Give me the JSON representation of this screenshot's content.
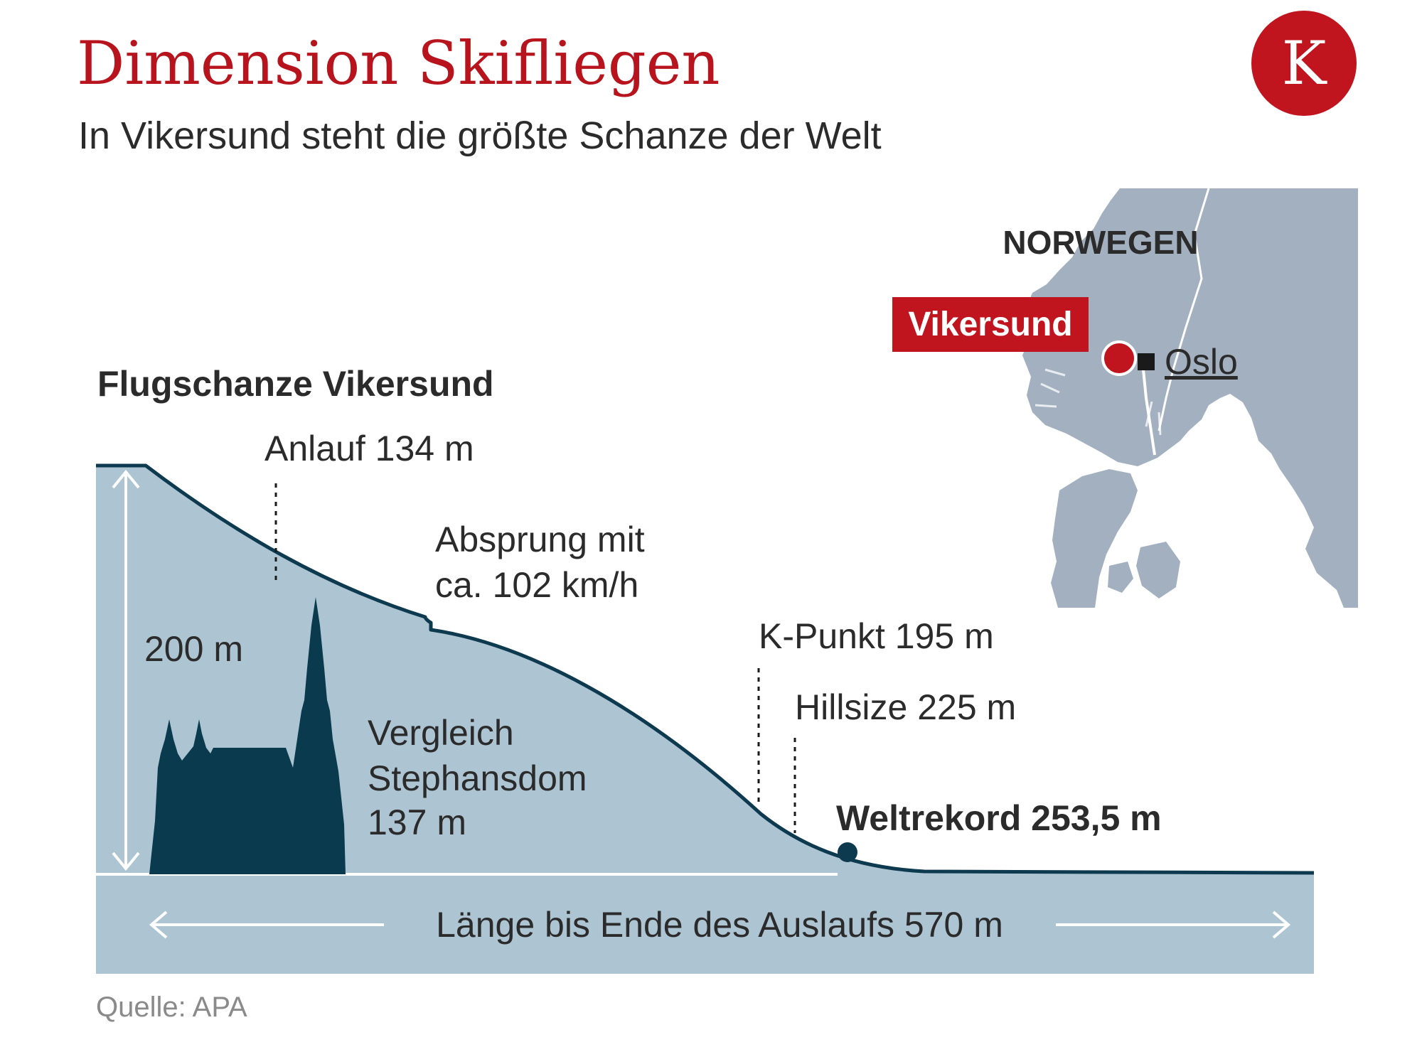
{
  "header": {
    "title": "Dimension Skifliegen",
    "subtitle": "In Vikersund steht die größte Schanze der Welt",
    "logo_letter": "K"
  },
  "diagram": {
    "heading": "Flugschanze Vikersund",
    "anlauf": "Anlauf 134 m",
    "absprung_line1": "Absprung mit",
    "absprung_line2": "ca. 102 km/h",
    "height": "200 m",
    "vergleich_line1": "Vergleich",
    "vergleich_line2": "Stephansdom",
    "vergleich_line3": "137 m",
    "k_punkt": "K-Punkt 195 m",
    "hillsize": "Hillsize 225 m",
    "weltrekord": "Weltrekord 253,5 m",
    "laenge": "Länge bis Ende des Auslaufs 570 m"
  },
  "map": {
    "country": "NORWEGEN",
    "site": "Vikersund",
    "capital": "Oslo"
  },
  "footer": {
    "source": "Quelle: APA"
  },
  "colors": {
    "accent_red": "#b8141d",
    "hill_fill": "#adc4d3",
    "hill_stroke": "#0d3a4f",
    "cathedral": "#093a4d",
    "map_land": "#a2b0c0",
    "text_dark": "#2b2b2b"
  }
}
